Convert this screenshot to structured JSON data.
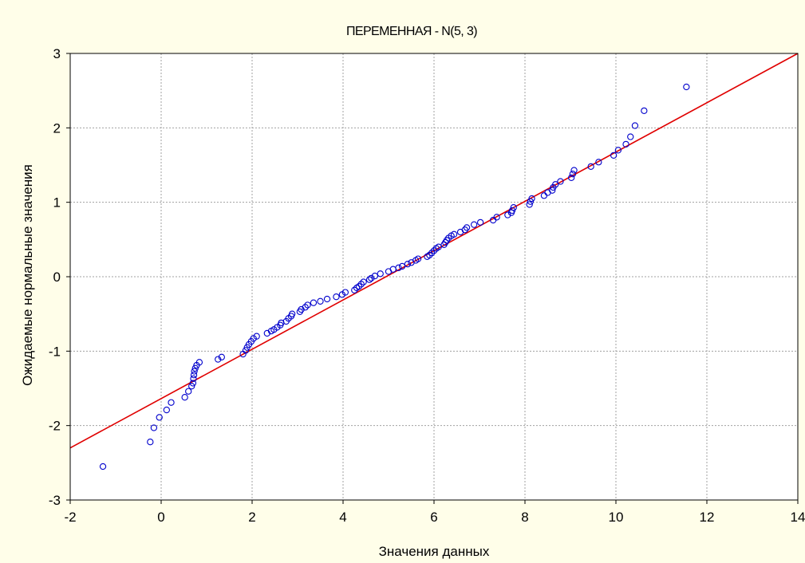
{
  "chart_data": {
    "type": "scatter",
    "title": "ПЕРЕМЕННАЯ - N(5, 3)",
    "xlabel": "Значения данных",
    "ylabel": "Ожидаемые нормальные значения",
    "xlim": [
      -2,
      14
    ],
    "ylim": [
      -3,
      3
    ],
    "x_ticks": [
      -2,
      0,
      2,
      4,
      6,
      8,
      10,
      12,
      14
    ],
    "y_ticks": [
      -3,
      -2,
      -1,
      0,
      1,
      2,
      3
    ],
    "x_tick_labels": [
      "-2",
      "0",
      "2",
      "4",
      "6",
      "8",
      "10",
      "12",
      "14"
    ],
    "y_tick_labels": [
      "-3",
      "-2",
      "-1",
      "0",
      "1",
      "2",
      "3"
    ],
    "grid": true,
    "colors": {
      "marker": "#0000cc",
      "fit_line": "#e00000",
      "background": "#fffee9",
      "plot_area": "#ffffff",
      "grid": "#a0a0a0"
    },
    "fit_line": {
      "x": [
        -2,
        14
      ],
      "y": [
        -2.3,
        3.0
      ]
    },
    "points": [
      [
        -1.28,
        -2.55
      ],
      [
        -0.24,
        -2.22
      ],
      [
        -0.16,
        -2.03
      ],
      [
        -0.04,
        -1.89
      ],
      [
        0.12,
        -1.79
      ],
      [
        0.22,
        -1.69
      ],
      [
        0.52,
        -1.62
      ],
      [
        0.6,
        -1.54
      ],
      [
        0.67,
        -1.47
      ],
      [
        0.7,
        -1.43
      ],
      [
        0.71,
        -1.37
      ],
      [
        0.72,
        -1.32
      ],
      [
        0.73,
        -1.27
      ],
      [
        0.75,
        -1.23
      ],
      [
        0.78,
        -1.19
      ],
      [
        0.84,
        -1.15
      ],
      [
        1.25,
        -1.11
      ],
      [
        1.33,
        -1.08
      ],
      [
        1.8,
        -1.04
      ],
      [
        1.86,
        -0.99
      ],
      [
        1.89,
        -0.95
      ],
      [
        1.93,
        -0.91
      ],
      [
        1.98,
        -0.87
      ],
      [
        2.03,
        -0.83
      ],
      [
        2.1,
        -0.8
      ],
      [
        2.33,
        -0.76
      ],
      [
        2.42,
        -0.73
      ],
      [
        2.48,
        -0.71
      ],
      [
        2.55,
        -0.68
      ],
      [
        2.62,
        -0.65
      ],
      [
        2.64,
        -0.62
      ],
      [
        2.75,
        -0.6
      ],
      [
        2.8,
        -0.56
      ],
      [
        2.86,
        -0.53
      ],
      [
        2.88,
        -0.5
      ],
      [
        3.05,
        -0.47
      ],
      [
        3.08,
        -0.44
      ],
      [
        3.17,
        -0.41
      ],
      [
        3.22,
        -0.38
      ],
      [
        3.35,
        -0.35
      ],
      [
        3.5,
        -0.33
      ],
      [
        3.65,
        -0.3
      ],
      [
        3.85,
        -0.27
      ],
      [
        3.98,
        -0.24
      ],
      [
        4.05,
        -0.21
      ],
      [
        4.25,
        -0.18
      ],
      [
        4.3,
        -0.15
      ],
      [
        4.35,
        -0.13
      ],
      [
        4.4,
        -0.1
      ],
      [
        4.45,
        -0.07
      ],
      [
        4.58,
        -0.04
      ],
      [
        4.62,
        -0.02
      ],
      [
        4.7,
        0.01
      ],
      [
        4.82,
        0.04
      ],
      [
        5.0,
        0.07
      ],
      [
        5.1,
        0.1
      ],
      [
        5.22,
        0.12
      ],
      [
        5.3,
        0.14
      ],
      [
        5.42,
        0.17
      ],
      [
        5.5,
        0.19
      ],
      [
        5.6,
        0.22
      ],
      [
        5.65,
        0.24
      ],
      [
        5.85,
        0.27
      ],
      [
        5.9,
        0.29
      ],
      [
        5.95,
        0.32
      ],
      [
        6.0,
        0.35
      ],
      [
        6.05,
        0.38
      ],
      [
        6.1,
        0.4
      ],
      [
        6.22,
        0.43
      ],
      [
        6.25,
        0.46
      ],
      [
        6.28,
        0.49
      ],
      [
        6.32,
        0.52
      ],
      [
        6.38,
        0.55
      ],
      [
        6.44,
        0.57
      ],
      [
        6.58,
        0.6
      ],
      [
        6.68,
        0.63
      ],
      [
        6.72,
        0.66
      ],
      [
        6.88,
        0.7
      ],
      [
        7.02,
        0.73
      ],
      [
        7.3,
        0.76
      ],
      [
        7.38,
        0.8
      ],
      [
        7.62,
        0.83
      ],
      [
        7.7,
        0.86
      ],
      [
        7.72,
        0.89
      ],
      [
        7.75,
        0.93
      ],
      [
        8.1,
        0.97
      ],
      [
        8.12,
        1.01
      ],
      [
        8.15,
        1.05
      ],
      [
        8.42,
        1.09
      ],
      [
        8.5,
        1.13
      ],
      [
        8.6,
        1.16
      ],
      [
        8.62,
        1.2
      ],
      [
        8.67,
        1.24
      ],
      [
        8.78,
        1.28
      ],
      [
        9.02,
        1.33
      ],
      [
        9.05,
        1.38
      ],
      [
        9.08,
        1.43
      ],
      [
        9.45,
        1.48
      ],
      [
        9.62,
        1.54
      ],
      [
        9.95,
        1.63
      ],
      [
        10.05,
        1.7
      ],
      [
        10.22,
        1.78
      ],
      [
        10.32,
        1.88
      ],
      [
        10.42,
        2.03
      ],
      [
        10.62,
        2.23
      ],
      [
        11.55,
        2.55
      ]
    ]
  }
}
